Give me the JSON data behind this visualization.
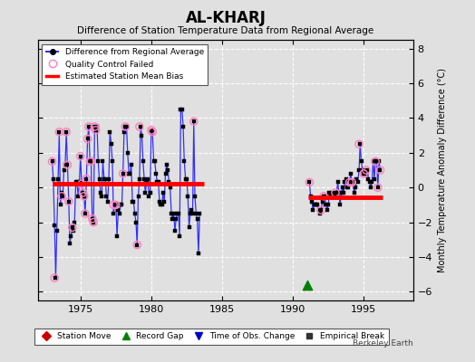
{
  "title": "AL-KHARJ",
  "subtitle": "Difference of Station Temperature Data from Regional Average",
  "ylabel": "Monthly Temperature Anomaly Difference (°C)",
  "xlim": [
    1972.0,
    1998.5
  ],
  "ylim": [
    -6.5,
    8.5
  ],
  "yticks": [
    -6,
    -4,
    -2,
    0,
    2,
    4,
    6,
    8
  ],
  "xticks": [
    1975,
    1980,
    1985,
    1990,
    1995
  ],
  "background_color": "#e0e0e0",
  "plot_bg_color": "#e0e0e0",
  "grid_color": "#ffffff",
  "series1_color": "#3030ff",
  "qc_color": "#ff80c0",
  "bias_color": "#ff0000",
  "segment1": {
    "x_start": 1973.0,
    "x_end": 1983.7,
    "bias": 0.2
  },
  "segment2": {
    "x_start": 1991.1,
    "x_end": 1996.3,
    "bias": -0.55
  },
  "data_seg1_x": [
    1973.0,
    1973.08,
    1973.17,
    1973.25,
    1973.33,
    1973.42,
    1973.5,
    1973.58,
    1973.67,
    1973.75,
    1973.83,
    1973.92,
    1974.0,
    1974.08,
    1974.17,
    1974.25,
    1974.33,
    1974.42,
    1974.5,
    1974.58,
    1974.67,
    1974.75,
    1974.83,
    1974.92,
    1975.0,
    1975.08,
    1975.17,
    1975.25,
    1975.33,
    1975.42,
    1975.5,
    1975.58,
    1975.67,
    1975.75,
    1975.83,
    1975.92,
    1976.0,
    1976.08,
    1976.17,
    1976.25,
    1976.33,
    1976.42,
    1976.5,
    1976.58,
    1976.67,
    1976.75,
    1976.83,
    1976.92,
    1977.0,
    1977.08,
    1977.17,
    1977.25,
    1977.33,
    1977.42,
    1977.5,
    1977.58,
    1977.67,
    1977.75,
    1977.83,
    1977.92,
    1978.0,
    1978.08,
    1978.17,
    1978.25,
    1978.33,
    1978.42,
    1978.5,
    1978.58,
    1978.67,
    1978.75,
    1978.83,
    1978.92,
    1979.0,
    1979.08,
    1979.17,
    1979.25,
    1979.33,
    1979.42,
    1979.5,
    1979.58,
    1979.67,
    1979.75,
    1979.83,
    1979.92,
    1980.0,
    1980.08,
    1980.17,
    1980.25,
    1980.33,
    1980.42,
    1980.5,
    1980.58,
    1980.67,
    1980.75,
    1980.83,
    1980.92,
    1981.0,
    1981.08,
    1981.17,
    1981.25,
    1981.33,
    1981.42,
    1981.5,
    1981.58,
    1981.67,
    1981.75,
    1981.83,
    1981.92,
    1982.0,
    1982.08,
    1982.17,
    1982.25,
    1982.33,
    1982.42,
    1982.5,
    1982.58,
    1982.67,
    1982.75,
    1982.83,
    1982.92,
    1983.0,
    1983.08,
    1983.17,
    1983.25,
    1983.33,
    1983.42
  ],
  "data_seg1_y": [
    1.5,
    0.5,
    -2.2,
    -5.2,
    -2.5,
    0.5,
    3.2,
    -1.0,
    -0.3,
    -0.5,
    1.0,
    1.3,
    3.2,
    1.3,
    -0.8,
    -3.2,
    -2.8,
    -2.3,
    -2.5,
    -2.0,
    0.3,
    0.3,
    -0.5,
    0.3,
    1.8,
    0.2,
    -0.3,
    -0.5,
    -1.5,
    0.5,
    2.8,
    3.5,
    1.5,
    1.5,
    -1.8,
    -2.0,
    3.5,
    3.3,
    3.5,
    1.5,
    0.5,
    -0.3,
    -0.5,
    1.5,
    0.5,
    0.5,
    -0.5,
    -0.8,
    0.5,
    3.2,
    2.5,
    1.5,
    -1.5,
    -1.0,
    -1.0,
    -2.8,
    -1.3,
    -1.5,
    -1.0,
    -1.0,
    0.8,
    3.2,
    3.5,
    3.5,
    2.0,
    0.8,
    0.8,
    1.3,
    -0.8,
    -0.8,
    -1.5,
    -2.0,
    -3.3,
    -0.5,
    0.5,
    3.5,
    3.0,
    1.5,
    0.5,
    -0.3,
    0.3,
    0.5,
    -0.5,
    -0.3,
    3.3,
    3.2,
    1.5,
    1.5,
    0.8,
    0.3,
    0.3,
    -0.8,
    -1.0,
    -1.0,
    -0.3,
    -0.8,
    0.8,
    1.3,
    1.0,
    0.3,
    0.0,
    -1.5,
    -1.8,
    -1.5,
    -2.5,
    -1.8,
    -1.5,
    -1.5,
    -2.8,
    4.5,
    4.5,
    3.5,
    1.5,
    0.5,
    0.5,
    -0.5,
    -2.3,
    -1.5,
    -1.3,
    -1.5,
    3.8,
    -0.5,
    -1.5,
    -1.8,
    -3.8,
    -1.5
  ],
  "data_seg2_x": [
    1991.17,
    1991.25,
    1991.33,
    1991.42,
    1991.5,
    1991.58,
    1991.67,
    1991.75,
    1991.83,
    1991.92,
    1992.0,
    1992.08,
    1992.17,
    1992.25,
    1992.33,
    1992.42,
    1992.5,
    1992.58,
    1992.67,
    1992.75,
    1992.83,
    1992.92,
    1993.0,
    1993.08,
    1993.17,
    1993.25,
    1993.33,
    1993.42,
    1993.5,
    1993.58,
    1993.67,
    1993.75,
    1993.83,
    1993.92,
    1994.0,
    1994.08,
    1994.17,
    1994.25,
    1994.33,
    1994.42,
    1994.5,
    1994.58,
    1994.67,
    1994.75,
    1994.83,
    1994.92,
    1995.0,
    1995.08,
    1995.17,
    1995.25,
    1995.33,
    1995.42,
    1995.5,
    1995.58,
    1995.67,
    1995.75,
    1995.83,
    1995.92,
    1996.0,
    1996.08,
    1996.17
  ],
  "data_seg2_y": [
    0.3,
    -0.5,
    -0.8,
    -1.3,
    -1.0,
    -1.0,
    -1.0,
    -1.0,
    -1.3,
    -1.5,
    -1.3,
    -0.8,
    -0.5,
    -0.5,
    -1.0,
    -1.3,
    -1.0,
    -0.3,
    -0.5,
    -0.3,
    -0.5,
    -0.5,
    -0.3,
    -0.3,
    0.3,
    -0.3,
    -1.0,
    -0.3,
    0.0,
    -0.3,
    0.3,
    0.5,
    0.0,
    0.0,
    0.3,
    0.8,
    0.3,
    0.3,
    -0.3,
    0.0,
    0.5,
    0.3,
    1.0,
    2.5,
    1.5,
    1.0,
    0.8,
    0.8,
    0.8,
    1.0,
    0.5,
    0.3,
    0.0,
    0.3,
    1.5,
    0.5,
    1.5,
    1.5,
    0.0,
    1.5,
    1.0
  ],
  "qc_x": [
    1973.0,
    1973.17,
    1973.5,
    1973.67,
    1974.0,
    1974.08,
    1974.17,
    1974.42,
    1975.0,
    1975.08,
    1975.17,
    1975.25,
    1975.33,
    1975.42,
    1975.5,
    1975.58,
    1975.67,
    1975.75,
    1975.83,
    1975.92,
    1976.0,
    1976.08,
    1977.33,
    1977.5,
    1978.0,
    1978.17,
    1979.0,
    1979.17,
    1980.0,
    1980.08,
    1983.0,
    1991.17,
    1992.0,
    1992.17,
    1993.0,
    1994.0,
    1994.17,
    1994.67,
    1995.0,
    1995.17,
    1995.83,
    1996.0,
    1996.17
  ],
  "qc_y": [
    1.5,
    -5.2,
    3.2,
    -0.5,
    3.2,
    1.3,
    -0.8,
    -2.3,
    1.8,
    0.2,
    -0.3,
    -0.5,
    -1.5,
    0.5,
    2.8,
    3.5,
    1.5,
    1.5,
    -1.8,
    -2.0,
    3.5,
    3.3,
    -1.0,
    -1.0,
    0.8,
    3.5,
    -3.3,
    3.5,
    3.3,
    3.2,
    3.8,
    0.3,
    -1.3,
    -0.5,
    -0.3,
    0.3,
    0.3,
    2.5,
    0.8,
    1.0,
    1.5,
    0.0,
    1.0
  ],
  "record_gap_x": 1991.0,
  "record_gap_y": -5.6,
  "berkeley_earth_text": "Berkeley Earth"
}
